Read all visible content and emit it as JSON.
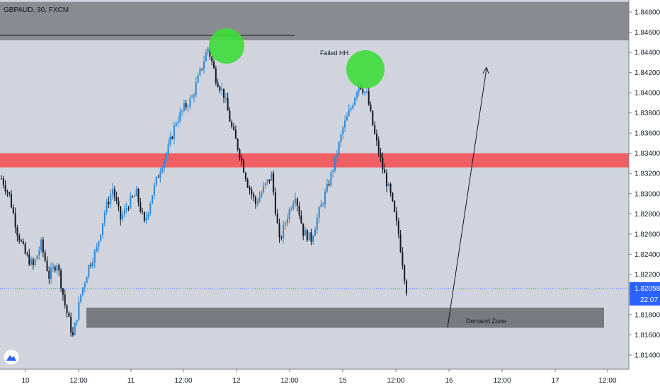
{
  "header": {
    "symbol_title": "GBPAUD, 30, FXCM"
  },
  "colors": {
    "plot_bg": "#d1d4dc",
    "top_zone": "#8a8b90",
    "resistance": "#ef5f63",
    "demand": "#7a7b80",
    "up_candle": "#2c87d6",
    "down_candle": "#131722",
    "circle": "#3ddc3a",
    "price_tag": "#2962ff"
  },
  "chart_data": {
    "type": "candlestick",
    "title": "GBPAUD, 30, FXCM",
    "ylim": [
      1.8125,
      1.849
    ],
    "yticks": [
      "1.84800",
      "1.84600",
      "1.84400",
      "1.84200",
      "1.84000",
      "1.83800",
      "1.83600",
      "1.83400",
      "1.83200",
      "1.83000",
      "1.82800",
      "1.82600",
      "1.82400",
      "1.82200",
      "1.82000",
      "1.81800",
      "1.81600",
      "1.81400"
    ],
    "xticks": [
      "10",
      "12:00",
      "11",
      "12:00",
      "12",
      "12:00",
      "15",
      "12:00",
      "16",
      "12:00",
      "17",
      "12:00"
    ],
    "price_series": {
      "description": "approximate close path read from the chart",
      "close": [
        1.8315,
        1.8298,
        1.8262,
        1.824,
        1.8228,
        1.825,
        1.8218,
        1.8232,
        1.819,
        1.8158,
        1.82,
        1.8228,
        1.8245,
        1.8282,
        1.8305,
        1.8275,
        1.829,
        1.83,
        1.827,
        1.83,
        1.8325,
        1.8345,
        1.8372,
        1.8385,
        1.8395,
        1.842,
        1.8445,
        1.8415,
        1.8398,
        1.8365,
        1.834,
        1.831,
        1.829,
        1.8305,
        1.8318,
        1.8252,
        1.8278,
        1.83,
        1.8262,
        1.8255,
        1.8282,
        1.8305,
        1.8332,
        1.8365,
        1.8385,
        1.841,
        1.8398,
        1.8358,
        1.8325,
        1.8298,
        1.826,
        1.8205
      ]
    },
    "zones": [
      {
        "name": "top",
        "from": 1.8452,
        "to": 1.849
      },
      {
        "name": "resistance",
        "from": 1.8326,
        "to": 1.834
      },
      {
        "name": "Demand Zone",
        "from": 1.8167,
        "to": 1.8187
      }
    ],
    "annotations": {
      "failed_hh": "Failed HH",
      "demand_zone": "Demand Zone"
    },
    "current_price": {
      "value": "1.82058",
      "countdown": "22:07",
      "price": 1.82058
    }
  }
}
